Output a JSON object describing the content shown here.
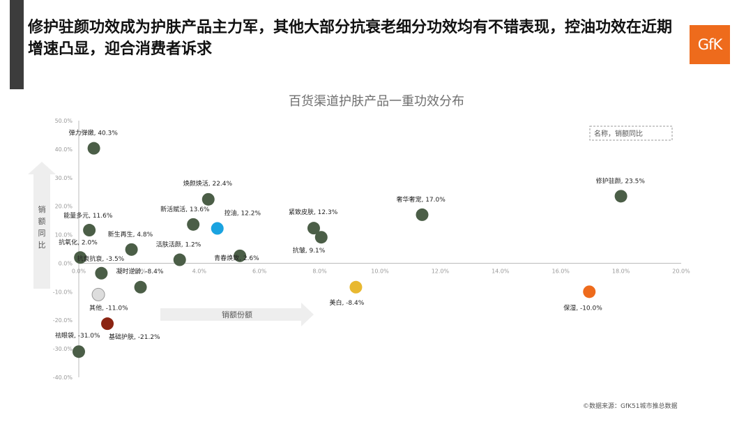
{
  "header": {
    "headline": "修护驻颜功效成为护肤产品主力军，其他大部分抗衰老细分功效均有不错表现，控油功效在近期增速凸显，迎合消费者诉求",
    "logo_text": "GfK"
  },
  "colors": {
    "accent": "#ee6b1c",
    "dot_default": "#4b5e47",
    "left_bar": "#3c3c3c"
  },
  "footer": {
    "source": "©数据来源：GfK51城市推总数据"
  },
  "chart_data": {
    "type": "scatter",
    "title": "百货渠道护肤产品一重功效分布",
    "xlabel": "销额份额",
    "ylabel": "销额同比",
    "legend_note": "名称，销额同比",
    "xlim": [
      0,
      20
    ],
    "ylim": [
      -40,
      50
    ],
    "x_ticks": [
      "0.0%",
      "2.0%",
      "4.0%",
      "6.0%",
      "8.0%",
      "10.0%",
      "12.0%",
      "14.0%",
      "16.0%",
      "18.0%",
      "20.0%"
    ],
    "y_ticks": [
      "50.0%",
      "40.0%",
      "30.0%",
      "20.0%",
      "10.0%",
      "0.0%",
      "-10.0%",
      "-20.0%",
      "-30.0%",
      "-40.0%"
    ],
    "grid": false,
    "points": [
      {
        "label": "弹力弹嫩, 40.3%",
        "x": 0.5,
        "y": 40.3,
        "color": "#4b5e47"
      },
      {
        "label": "焕颜焕活, 22.4%",
        "x": 4.3,
        "y": 22.4,
        "color": "#4b5e47"
      },
      {
        "label": "修护驻颜, 23.5%",
        "x": 18.0,
        "y": 23.5,
        "color": "#4b5e47"
      },
      {
        "label": "奢华奢宠, 17.0%",
        "x": 11.4,
        "y": 17.0,
        "color": "#4b5e47"
      },
      {
        "label": "能量多元, 11.6%",
        "x": 0.35,
        "y": 11.6,
        "color": "#4b5e47"
      },
      {
        "label": "新活赋活, 13.6%",
        "x": 3.8,
        "y": 13.6,
        "color": "#4b5e47"
      },
      {
        "label": "控油, 12.2%",
        "x": 4.6,
        "y": 12.2,
        "color": "#1aa3e0"
      },
      {
        "label": "紧致皮肤, 12.3%",
        "x": 7.8,
        "y": 12.3,
        "color": "#4b5e47"
      },
      {
        "label": "抗皱, 9.1%",
        "x": 8.05,
        "y": 9.1,
        "color": "#4b5e47"
      },
      {
        "label": "新生再生, 4.8%",
        "x": 1.75,
        "y": 4.8,
        "color": "#4b5e47"
      },
      {
        "label": "抗氧化, 2.0%",
        "x": 0.05,
        "y": 2.0,
        "color": "#4b5e47"
      },
      {
        "label": "活肤活颜, 1.2%",
        "x": 3.35,
        "y": 1.2,
        "color": "#4b5e47"
      },
      {
        "label": "青春焕致, 2.6%",
        "x": 5.35,
        "y": 2.6,
        "color": "#4b5e47"
      },
      {
        "label": "抗衰抗衰, -3.5%",
        "x": 0.75,
        "y": -3.5,
        "color": "#4b5e47"
      },
      {
        "label": "凝时逆龄, -8.4%",
        "x": 2.05,
        "y": -8.4,
        "color": "#4b5e47"
      },
      {
        "label": "其他, -11.0%",
        "x": 0.65,
        "y": -11.0,
        "color": "#dddddd"
      },
      {
        "label": "美白, -8.4%",
        "x": 9.2,
        "y": -8.4,
        "color": "#e8b830"
      },
      {
        "label": "保湿, -10.0%",
        "x": 16.95,
        "y": -10.0,
        "color": "#ee6b1c"
      },
      {
        "label": "基础护肤, -21.2%",
        "x": 0.95,
        "y": -21.2,
        "color": "#8b2412"
      },
      {
        "label": "祛眼袋, -31.0%",
        "x": 0.0,
        "y": -31.0,
        "color": "#4b5e47"
      }
    ]
  }
}
